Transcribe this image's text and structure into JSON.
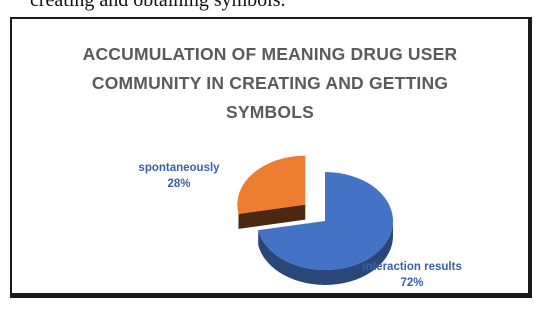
{
  "caption": "creating and obtaining symbols.",
  "chart_data": {
    "type": "pie",
    "title": "ACCUMULATION OF MEANING DRUG USER COMMUNITY IN CREATING AND GETTING SYMBOLS",
    "title_lines": [
      "ACCUMULATION OF MEANING DRUG USER",
      "COMMUNITY IN CREATING AND GETTING",
      "SYMBOLS"
    ],
    "style": "3d-exploded",
    "legend": "none",
    "slices": [
      {
        "label": "interaction results",
        "value": 72,
        "value_label": "72%",
        "color": "#4472c4"
      },
      {
        "label": "spontaneously",
        "value": 28,
        "value_label": "28%",
        "color": "#ed7d31"
      }
    ]
  }
}
